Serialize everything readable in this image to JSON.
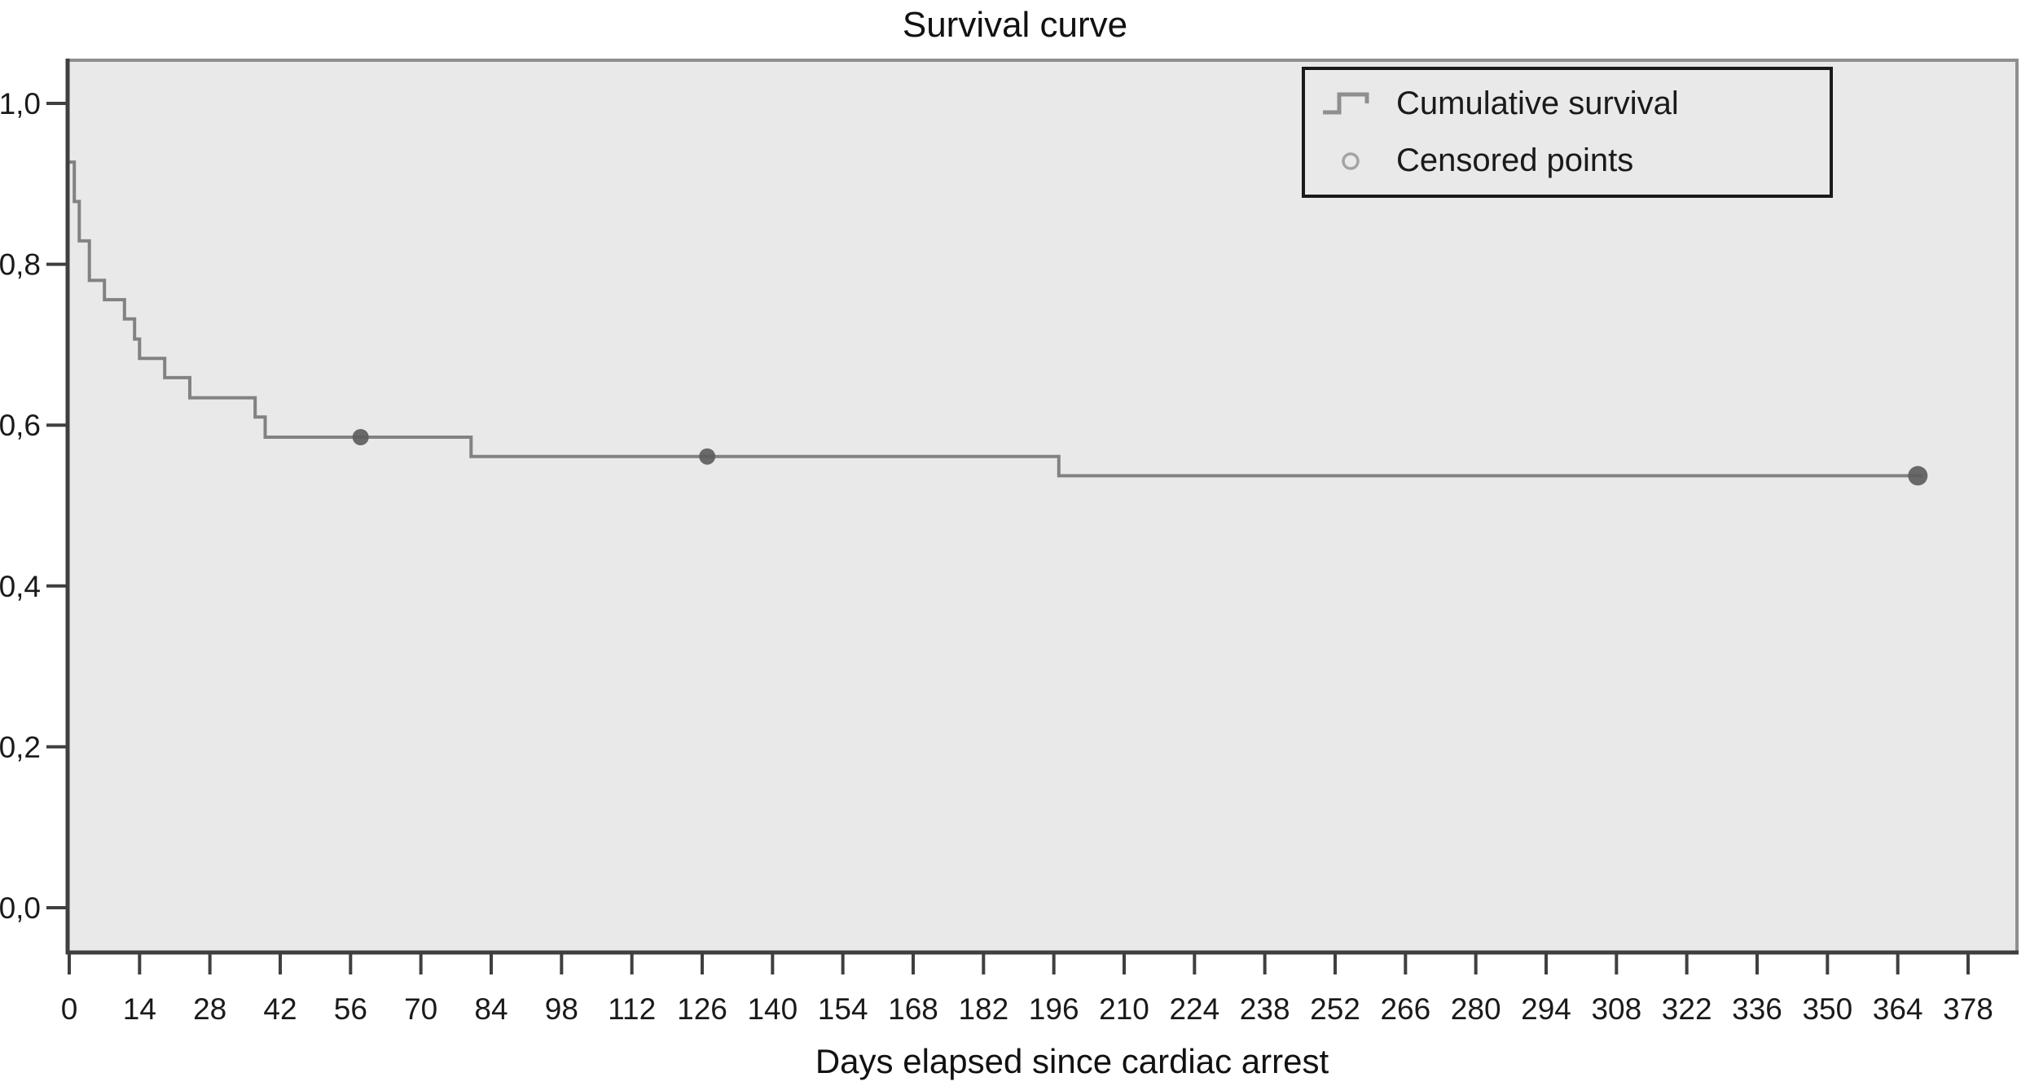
{
  "title": "Survival curve",
  "x_axis_label": "Days elapsed since cardiac arrest",
  "legend": {
    "items": [
      {
        "label": "Cumulative survival",
        "symbol": "step-line"
      },
      {
        "label": "Censored points",
        "symbol": "open-circle"
      }
    ]
  },
  "colors": {
    "plot_background": "#e9e9e9",
    "curve": "#828282",
    "censored_point": "#5d5d5d",
    "dark_axis": "#3f3f3f",
    "light_border": "#8f8f8f",
    "text": "#1a1a1a",
    "legend_border": "#1a1a1a",
    "legend_symbol": "#8f8f8f",
    "legend_circle": "#a3a3a3"
  },
  "chart_data": {
    "type": "line",
    "subtype": "kaplan-meier-step",
    "title": "Survival curve",
    "xlabel": "Days elapsed since cardiac arrest",
    "ylabel": "",
    "xlim": [
      0,
      388
    ],
    "ylim": [
      0.0,
      1.05
    ],
    "grid": false,
    "legend_position": "top-right",
    "x_ticks": [
      0,
      14,
      28,
      42,
      56,
      70,
      84,
      98,
      112,
      126,
      140,
      154,
      168,
      182,
      196,
      210,
      224,
      238,
      252,
      266,
      280,
      294,
      308,
      322,
      336,
      350,
      364,
      378
    ],
    "y_tick_values": [
      0.0,
      0.2,
      0.4,
      0.6,
      0.8,
      1.0
    ],
    "y_tick_labels": [
      "0,0",
      "0,2",
      "0,4",
      "0,6",
      "0,8",
      "1,0"
    ],
    "series": [
      {
        "name": "Cumulative survival",
        "type": "step",
        "color": "#828282",
        "step_points": [
          [
            0,
            0.927
          ],
          [
            1,
            0.878
          ],
          [
            2,
            0.829
          ],
          [
            4,
            0.78
          ],
          [
            7,
            0.756
          ],
          [
            11,
            0.732
          ],
          [
            13,
            0.707
          ],
          [
            14,
            0.683
          ],
          [
            19,
            0.659
          ],
          [
            24,
            0.634
          ],
          [
            37,
            0.61
          ],
          [
            39,
            0.585
          ],
          [
            80,
            0.561
          ],
          [
            197,
            0.537
          ]
        ],
        "end_day": 369,
        "end_value": 0.537
      },
      {
        "name": "Censored points",
        "type": "scatter",
        "color": "#5d5d5d",
        "points": [
          [
            58,
            0.585
          ],
          [
            127,
            0.561
          ],
          [
            368,
            0.537
          ]
        ]
      }
    ]
  }
}
